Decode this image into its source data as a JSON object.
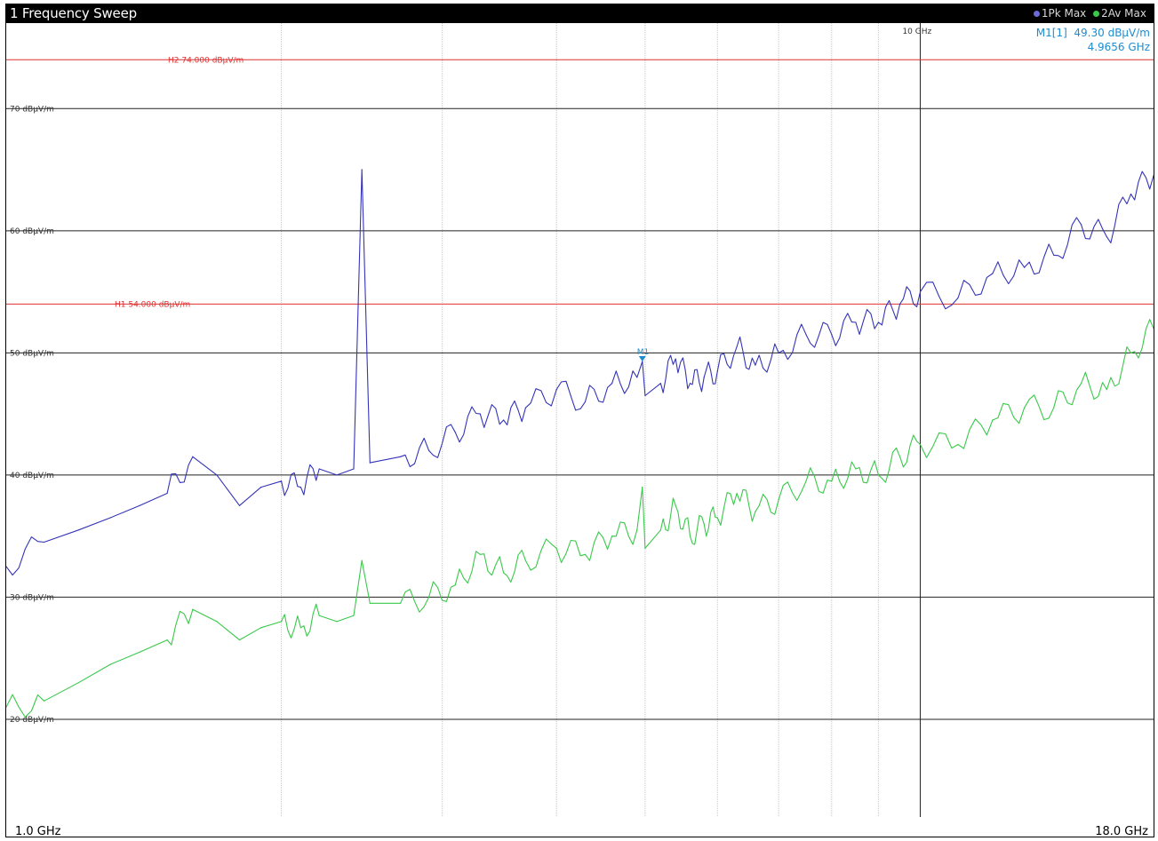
{
  "header": {
    "title": "1 Frequency Sweep",
    "legend": [
      {
        "label": "1Pk Max",
        "color": "#6a6ad8"
      },
      {
        "label": "2Av Max",
        "color": "#39c94a"
      }
    ]
  },
  "marker_readout": {
    "name": "M1[1]",
    "level": "49.30 dBµV/m",
    "frequency": "4.9656 GHz"
  },
  "chart_data": {
    "type": "line",
    "x_scale": "log",
    "xlim_ghz": [
      1.0,
      18.0
    ],
    "ylim": [
      12,
      77
    ],
    "x_start_label": "1.0 GHz",
    "x_stop_label": "18.0 GHz",
    "x_grid_label": {
      "text": "10 GHz",
      "value_ghz": 10
    },
    "x_minor_grid_ghz": [
      2,
      3,
      4,
      5,
      6,
      7,
      8,
      9
    ],
    "y_ticks": [
      {
        "value": 70,
        "label": "70 dBµV/m"
      },
      {
        "value": 60,
        "label": "60 dBµV/m"
      },
      {
        "value": 50,
        "label": "50 dBµV/m"
      },
      {
        "value": 40,
        "label": "40 dBµV/m"
      },
      {
        "value": 30,
        "label": "30 dBµV/m"
      },
      {
        "value": 20,
        "label": "20 dBµV/m"
      }
    ],
    "limit_lines": [
      {
        "name": "H2",
        "label": "H2 74.000 dBµV/m",
        "value": 74.0,
        "color": "#e03030"
      },
      {
        "name": "H1",
        "label": "H1 54.000 dBµV/m",
        "value": 54.0,
        "color": "#e03030"
      }
    ],
    "series": [
      {
        "name": "1Pk Max",
        "color": "#3434b8",
        "x_ghz": [
          1.0,
          1.1,
          1.2,
          1.3,
          1.4,
          1.5,
          1.6,
          1.7,
          1.8,
          1.9,
          2.0,
          2.1,
          2.2,
          2.3,
          2.4,
          2.45,
          2.5,
          2.7,
          2.9,
          3.1,
          3.3,
          3.5,
          3.7,
          4.0,
          4.3,
          4.6,
          4.9,
          4.9656,
          5.0,
          5.2,
          5.4,
          5.6,
          5.8,
          6.0,
          6.3,
          6.6,
          7.0,
          7.5,
          8.0,
          8.5,
          9.0,
          9.5,
          10.0,
          11.0,
          12.0,
          13.0,
          14.0,
          15.0,
          16.0,
          17.0,
          18.0
        ],
        "values": [
          32.5,
          34.5,
          35.5,
          36.5,
          37.5,
          38.5,
          41.5,
          40.0,
          37.5,
          39.0,
          39.5,
          39.0,
          40.5,
          40.0,
          40.5,
          65.0,
          41.0,
          41.5,
          42.0,
          43.5,
          45.0,
          44.5,
          45.5,
          47.0,
          46.0,
          47.5,
          48.0,
          49.3,
          46.5,
          47.5,
          49.5,
          47.5,
          48.0,
          48.5,
          50.5,
          49.0,
          50.0,
          51.5,
          51.5,
          52.5,
          52.5,
          54.0,
          55.0,
          54.5,
          56.5,
          57.0,
          58.0,
          60.5,
          59.5,
          63.0,
          64.5
        ]
      },
      {
        "name": "2Av Max",
        "color": "#39c94a",
        "x_ghz": [
          1.0,
          1.1,
          1.2,
          1.3,
          1.4,
          1.5,
          1.6,
          1.7,
          1.8,
          1.9,
          2.0,
          2.1,
          2.2,
          2.3,
          2.4,
          2.45,
          2.5,
          2.7,
          2.9,
          3.1,
          3.3,
          3.5,
          3.7,
          4.0,
          4.3,
          4.6,
          4.9,
          4.9656,
          5.0,
          5.2,
          5.4,
          5.6,
          5.8,
          6.0,
          6.3,
          6.6,
          7.0,
          7.5,
          8.0,
          8.5,
          9.0,
          9.5,
          10.0,
          11.0,
          12.0,
          13.0,
          14.0,
          15.0,
          16.0,
          17.0,
          18.0
        ],
        "values": [
          21.0,
          21.5,
          23.0,
          24.5,
          25.5,
          26.5,
          29.0,
          28.0,
          26.5,
          27.5,
          28.0,
          27.5,
          28.5,
          28.0,
          28.5,
          33.0,
          29.5,
          29.5,
          30.0,
          31.0,
          33.5,
          32.0,
          33.0,
          34.0,
          33.5,
          35.0,
          35.5,
          39.0,
          34.0,
          35.5,
          37.5,
          35.0,
          36.0,
          36.5,
          38.5,
          37.0,
          38.0,
          39.5,
          39.5,
          40.5,
          40.0,
          41.5,
          42.5,
          42.5,
          44.5,
          45.5,
          45.5,
          47.5,
          47.0,
          50.0,
          52.0
        ]
      }
    ],
    "markers": [
      {
        "name": "M1",
        "label": "M1",
        "x_ghz": 4.9656,
        "value": 49.3,
        "color": "#1e8cd0"
      }
    ]
  }
}
